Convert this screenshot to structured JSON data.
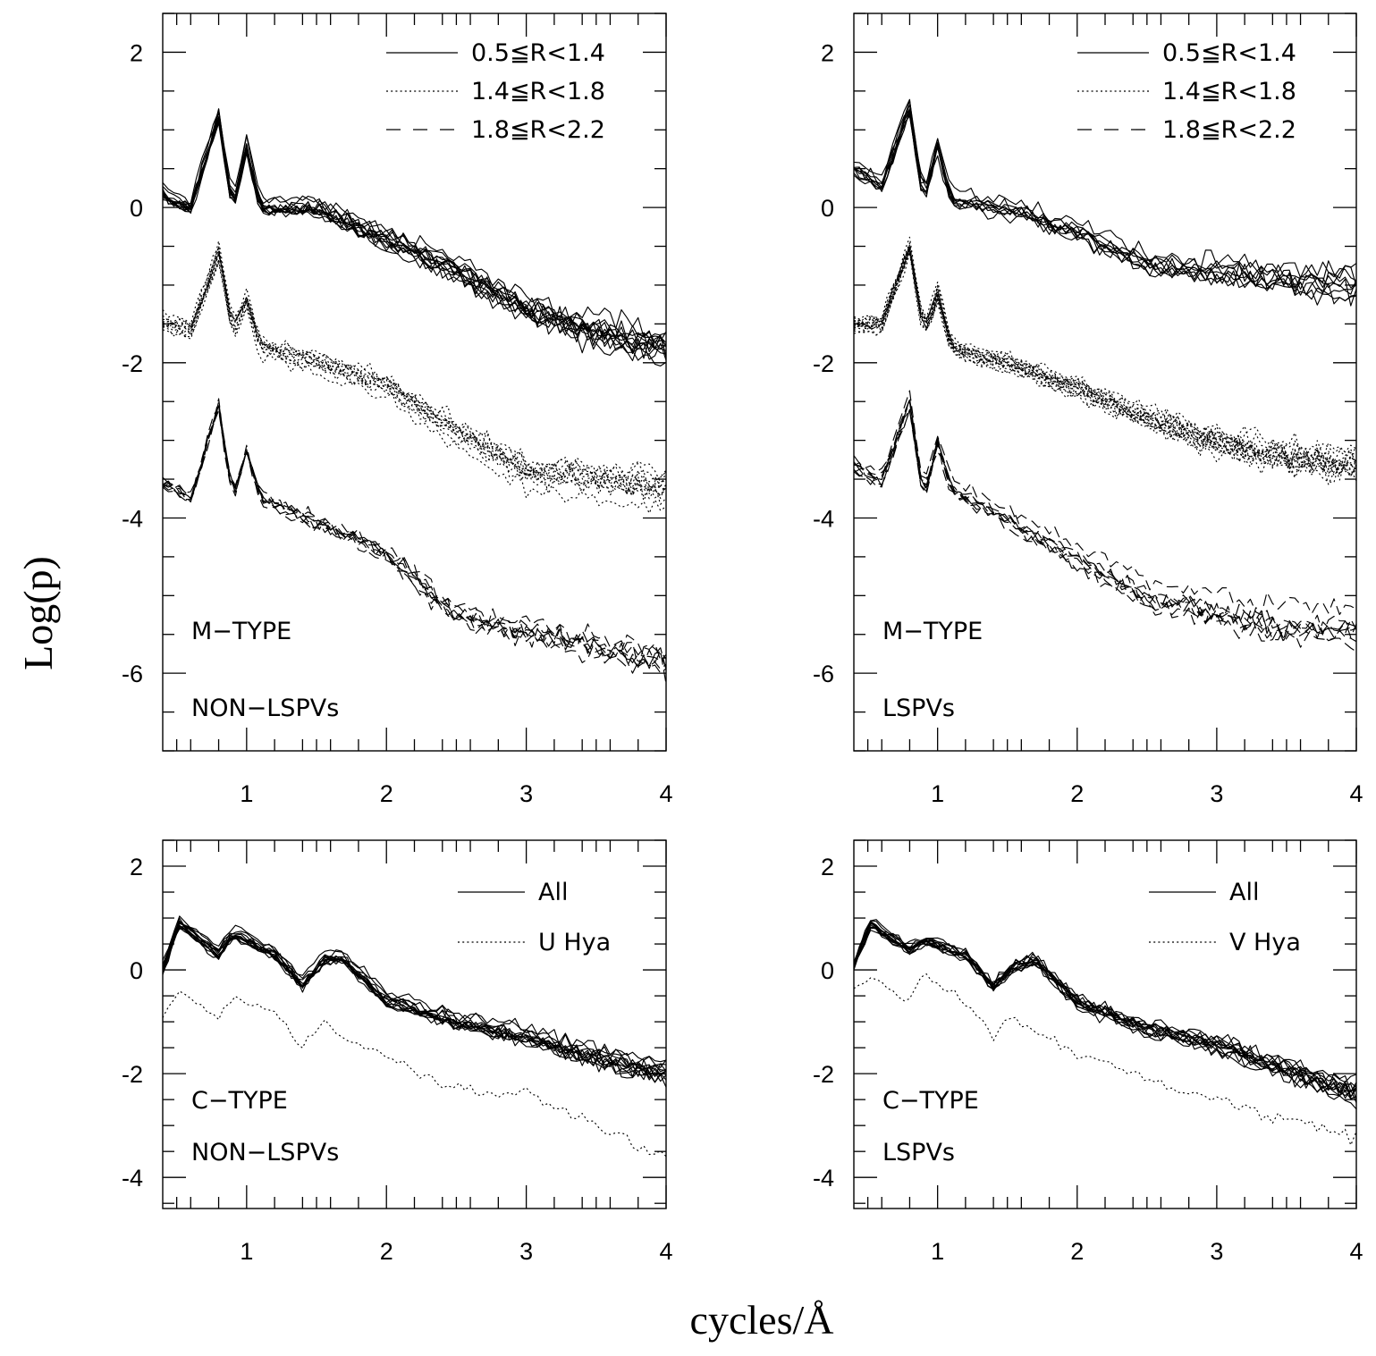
{
  "figure": {
    "ylabel": "Log(p)",
    "xlabel": "cycles/Å"
  },
  "chart_data": [
    {
      "type": "line",
      "panel": "top-left",
      "title_lines": [
        "M−TYPE",
        "NON−LSPVs"
      ],
      "xlim": [
        0.4,
        4.0
      ],
      "ylim": [
        -7.0,
        2.5
      ],
      "xticks": [
        1,
        2,
        3,
        4
      ],
      "yticks": [
        2,
        0,
        -2,
        -4,
        -6
      ],
      "legend_position": "top-right",
      "legend": [
        {
          "label": "0.5≦R<1.4",
          "style": "solid"
        },
        {
          "label": "1.4≦R<1.8",
          "style": "dotted"
        },
        {
          "label": "1.8≦R<2.2",
          "style": "dashed"
        }
      ],
      "series": [
        {
          "name": "0.5≦R<1.4",
          "style": "solid",
          "count": 13,
          "x": [
            0.4,
            0.6,
            0.8,
            0.9,
            1.0,
            1.1,
            1.5,
            2.0,
            2.5,
            3.0,
            3.5,
            4.0
          ],
          "values": [
            0.2,
            0.0,
            1.2,
            0.0,
            0.8,
            0.0,
            0.0,
            -0.4,
            -0.8,
            -1.3,
            -1.6,
            -1.8
          ]
        },
        {
          "name": "1.4≦R<1.8",
          "style": "dotted",
          "count": 12,
          "x": [
            0.4,
            0.6,
            0.8,
            0.9,
            1.0,
            1.1,
            1.5,
            2.0,
            2.5,
            3.0,
            3.5,
            4.0
          ],
          "values": [
            -1.5,
            -1.6,
            -0.6,
            -1.6,
            -1.2,
            -1.8,
            -2.0,
            -2.3,
            -2.9,
            -3.4,
            -3.5,
            -3.6
          ]
        },
        {
          "name": "1.8≦R<2.2",
          "style": "dashed",
          "count": 8,
          "x": [
            0.4,
            0.6,
            0.8,
            0.9,
            1.0,
            1.1,
            1.5,
            2.0,
            2.5,
            3.0,
            3.5,
            4.0
          ],
          "values": [
            -3.5,
            -3.7,
            -2.5,
            -3.7,
            -3.1,
            -3.7,
            -4.0,
            -4.4,
            -5.2,
            -5.4,
            -5.6,
            -5.8
          ]
        }
      ]
    },
    {
      "type": "line",
      "panel": "top-right",
      "title_lines": [
        "M−TYPE",
        "LSPVs"
      ],
      "xlim": [
        0.4,
        4.0
      ],
      "ylim": [
        -7.0,
        2.5
      ],
      "xticks": [
        1,
        2,
        3,
        4
      ],
      "yticks": [
        2,
        0,
        -2,
        -4,
        -6
      ],
      "legend_position": "top-right",
      "legend": [
        {
          "label": "0.5≦R<1.4",
          "style": "solid"
        },
        {
          "label": "1.4≦R<1.8",
          "style": "dotted"
        },
        {
          "label": "1.8≦R<2.2",
          "style": "dashed"
        }
      ],
      "series": [
        {
          "name": "0.5≦R<1.4",
          "style": "solid",
          "count": 9,
          "x": [
            0.4,
            0.6,
            0.8,
            0.9,
            1.0,
            1.1,
            1.5,
            2.0,
            2.5,
            3.0,
            3.5,
            4.0
          ],
          "values": [
            0.5,
            0.3,
            1.3,
            0.1,
            0.8,
            0.1,
            0.0,
            -0.3,
            -0.7,
            -0.8,
            -0.9,
            -1.0
          ]
        },
        {
          "name": "1.4≦R<1.8",
          "style": "dotted",
          "count": 16,
          "x": [
            0.4,
            0.6,
            0.8,
            0.9,
            1.0,
            1.1,
            1.5,
            2.0,
            2.5,
            3.0,
            3.5,
            4.0
          ],
          "values": [
            -1.5,
            -1.5,
            -0.5,
            -1.6,
            -1.1,
            -1.8,
            -2.0,
            -2.3,
            -2.7,
            -3.0,
            -3.2,
            -3.3
          ]
        },
        {
          "name": "1.8≦R<2.2",
          "style": "dashed",
          "count": 8,
          "x": [
            0.4,
            0.6,
            0.8,
            0.9,
            1.0,
            1.1,
            1.5,
            2.0,
            2.5,
            3.0,
            3.5,
            4.0
          ],
          "values": [
            -3.3,
            -3.5,
            -2.5,
            -3.7,
            -3.0,
            -3.6,
            -4.0,
            -4.5,
            -5.0,
            -5.2,
            -5.4,
            -5.4
          ]
        }
      ]
    },
    {
      "type": "line",
      "panel": "bottom-left",
      "title_lines": [
        "C−TYPE",
        "NON−LSPVs"
      ],
      "xlim": [
        0.4,
        4.0
      ],
      "ylim": [
        -4.6,
        2.5
      ],
      "xticks": [
        1,
        2,
        3,
        4
      ],
      "yticks": [
        2,
        0,
        -2,
        -4
      ],
      "legend_position": "top-right",
      "legend": [
        {
          "label": "All",
          "style": "solid"
        },
        {
          "label": "U Hya",
          "style": "dotted"
        }
      ],
      "series": [
        {
          "name": "All",
          "style": "solid",
          "count": 13,
          "x": [
            0.4,
            0.52,
            0.8,
            0.9,
            1.2,
            1.4,
            1.55,
            1.7,
            2.0,
            2.5,
            3.0,
            3.5,
            4.0
          ],
          "values": [
            0.0,
            0.9,
            0.3,
            0.7,
            0.3,
            -0.3,
            0.2,
            0.2,
            -0.6,
            -1.0,
            -1.3,
            -1.7,
            -2.0
          ]
        },
        {
          "name": "U Hya",
          "style": "dotted",
          "count": 1,
          "x": [
            0.4,
            0.52,
            0.8,
            0.9,
            1.2,
            1.4,
            1.55,
            1.7,
            2.0,
            2.5,
            3.0,
            3.5,
            4.0
          ],
          "values": [
            -0.9,
            -0.4,
            -0.9,
            -0.5,
            -0.8,
            -1.5,
            -1.0,
            -1.3,
            -1.7,
            -2.3,
            -2.4,
            -3.0,
            -3.6
          ]
        }
      ]
    },
    {
      "type": "line",
      "panel": "bottom-right",
      "title_lines": [
        "C−TYPE",
        "LSPVs"
      ],
      "xlim": [
        0.4,
        4.0
      ],
      "ylim": [
        -4.6,
        2.5
      ],
      "xticks": [
        1,
        2,
        3,
        4
      ],
      "yticks": [
        2,
        0,
        -2,
        -4
      ],
      "legend_position": "top-right",
      "legend": [
        {
          "label": "All",
          "style": "solid"
        },
        {
          "label": "V Hya",
          "style": "dotted"
        }
      ],
      "series": [
        {
          "name": "All",
          "style": "solid",
          "count": 13,
          "x": [
            0.4,
            0.52,
            0.8,
            0.9,
            1.2,
            1.4,
            1.55,
            1.7,
            2.0,
            2.5,
            3.0,
            3.5,
            4.0
          ],
          "values": [
            0.1,
            0.9,
            0.4,
            0.6,
            0.3,
            -0.3,
            0.1,
            0.2,
            -0.6,
            -1.1,
            -1.4,
            -1.9,
            -2.3
          ]
        },
        {
          "name": "V Hya",
          "style": "dotted",
          "count": 1,
          "x": [
            0.4,
            0.52,
            0.8,
            0.9,
            1.2,
            1.4,
            1.55,
            1.7,
            2.0,
            2.5,
            3.0,
            3.5,
            4.0
          ],
          "values": [
            -0.4,
            -0.1,
            -0.6,
            -0.1,
            -0.6,
            -1.3,
            -0.9,
            -1.2,
            -1.6,
            -2.1,
            -2.5,
            -2.9,
            -3.2
          ]
        }
      ]
    }
  ]
}
